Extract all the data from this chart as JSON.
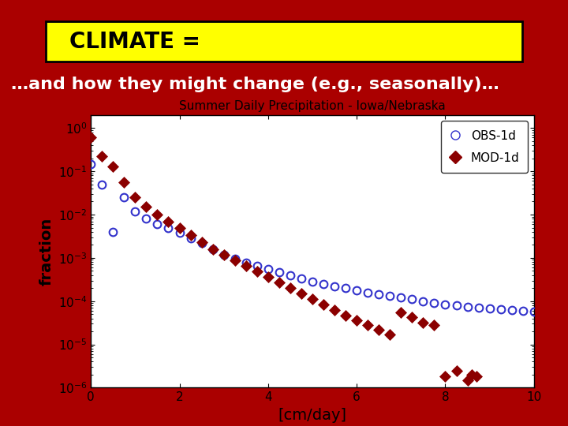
{
  "background_color": "#AA0000",
  "title_box_color": "#FFFF00",
  "title_box_border": "#000000",
  "title_text": "CLIMATE =",
  "subtitle_text": "…and how they might change (e.g., seasonally)…",
  "subtitle_color": "#FFFFFF",
  "chart_title": "Summer Daily Precipitation - Iowa/Nebraska",
  "xlabel": "[cm/day]",
  "ylabel": "fraction",
  "obs_x": [
    0.0,
    0.25,
    0.5,
    0.75,
    1.0,
    1.25,
    1.5,
    1.75,
    2.0,
    2.25,
    2.5,
    2.75,
    3.0,
    3.25,
    3.5,
    3.75,
    4.0,
    4.25,
    4.5,
    4.75,
    5.0,
    5.25,
    5.5,
    5.75,
    6.0,
    6.25,
    6.5,
    6.75,
    7.0,
    7.25,
    7.5,
    7.75,
    8.0,
    8.25,
    8.5,
    8.75,
    9.0,
    9.25,
    9.5,
    9.75,
    10.0
  ],
  "obs_y": [
    0.15,
    0.05,
    0.004,
    0.025,
    0.012,
    0.008,
    0.006,
    0.005,
    0.0038,
    0.0028,
    0.0022,
    0.0016,
    0.0012,
    0.00095,
    0.00078,
    0.00065,
    0.00055,
    0.00046,
    0.00039,
    0.00033,
    0.00028,
    0.00025,
    0.00022,
    0.0002,
    0.00018,
    0.00016,
    0.000145,
    0.00013,
    0.00012,
    0.00011,
    0.0001,
    9.2e-05,
    8.5e-05,
    8e-05,
    7.5e-05,
    7e-05,
    6.7e-05,
    6.4e-05,
    6.2e-05,
    6e-05,
    5.8e-05
  ],
  "mod_x": [
    0.0,
    0.25,
    0.5,
    0.75,
    1.0,
    1.25,
    1.5,
    1.75,
    2.0,
    2.25,
    2.5,
    2.75,
    3.0,
    3.25,
    3.5,
    3.75,
    4.0,
    4.25,
    4.5,
    4.75,
    5.0,
    5.25,
    5.5,
    5.75,
    6.0,
    6.25,
    6.5,
    6.75,
    7.0,
    7.25,
    7.5,
    7.75,
    8.0,
    8.25,
    8.5,
    8.6,
    8.7
  ],
  "mod_y": [
    0.6,
    0.22,
    0.13,
    0.055,
    0.025,
    0.015,
    0.01,
    0.0068,
    0.0048,
    0.0033,
    0.0023,
    0.0016,
    0.0012,
    0.00088,
    0.00065,
    0.00048,
    0.00036,
    0.00027,
    0.0002,
    0.000148,
    0.00011,
    8.2e-05,
    6.2e-05,
    4.7e-05,
    3.6e-05,
    2.8e-05,
    2.2e-05,
    1.7e-05,
    5.5e-05,
    4.2e-05,
    3.2e-05,
    2.8e-05,
    1.8e-06,
    2.5e-06,
    1.5e-06,
    2e-06,
    1.8e-06
  ],
  "obs_color": "#3333CC",
  "mod_color": "#8B0000",
  "ylim_min": 1e-06,
  "ylim_max": 2.0,
  "xlim_min": 0,
  "xlim_max": 10,
  "xticks": [
    0,
    2,
    4,
    6,
    8,
    10
  ]
}
